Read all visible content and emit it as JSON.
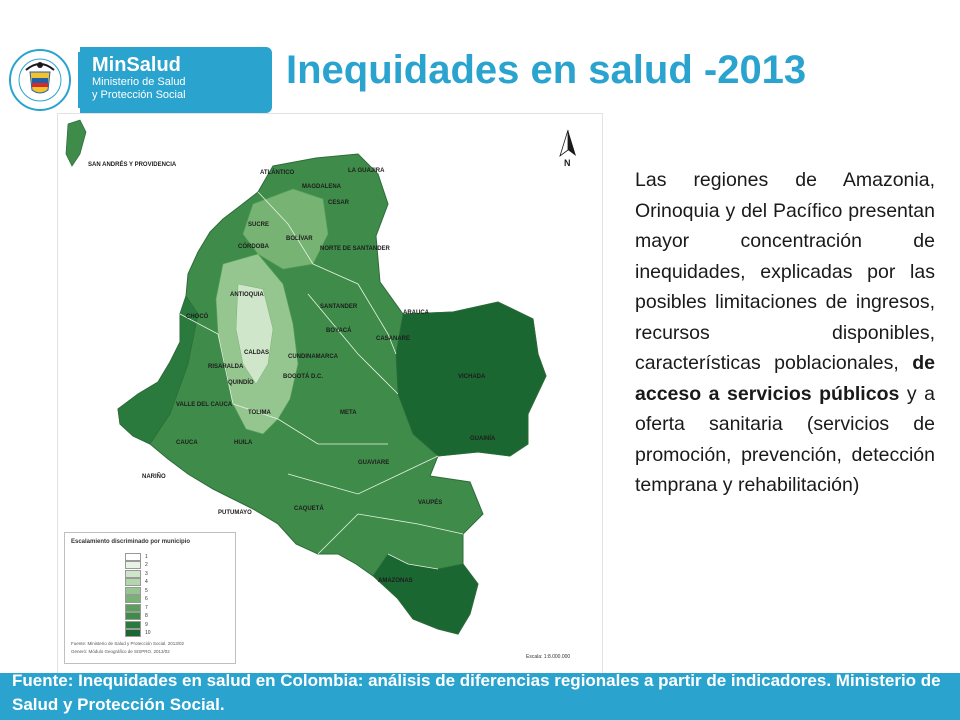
{
  "header": {
    "brand_name": "MinSalud",
    "brand_line1": "Ministerio de Salud",
    "brand_line2": "y Protección Social",
    "seal_text": "REPÚBLICA DE COLOMBIA",
    "title": "Inequidades en salud -2013"
  },
  "map": {
    "compass_label": "N",
    "labels": [
      "SAN ANDRÉS Y PROVIDENCIA",
      "ATLÁNTICO",
      "MAGDALENA",
      "LA GUAJIRA",
      "CESAR",
      "SUCRE",
      "BOLÍVAR",
      "NORTE DE SANTANDER",
      "CÓRDOBA",
      "ANTIOQUIA",
      "SANTANDER",
      "ARAUCA",
      "CHOCÓ",
      "BOYACÁ",
      "CASANARE",
      "CALDAS",
      "CUNDINAMARCA",
      "RISARALDA",
      "QUINDÍO",
      "BOGOTÁ D.C.",
      "VICHADA",
      "VALLE DEL CAUCA",
      "TOLIMA",
      "META",
      "CAUCA",
      "HUILA",
      "GUAINÍA",
      "NARIÑO",
      "GUAVIARE",
      "CAQUETÁ",
      "PUTUMAYO",
      "VAUPÉS",
      "AMAZONAS"
    ],
    "legend": {
      "title": "Escalamiento discriminado por municipio",
      "levels": [
        "1",
        "2",
        "3",
        "4",
        "5",
        "6",
        "7",
        "8",
        "9",
        "10"
      ],
      "colors": [
        "#ffffff",
        "#e8f3e5",
        "#cfe6ca",
        "#b3d7ad",
        "#95c68f",
        "#77b373",
        "#5aa05c",
        "#3f8c4a",
        "#2a7a3d",
        "#1b6732"
      ],
      "source_1": "Fuente: Ministerio de Salud y Protección Social. 2013/02",
      "source_2": "Generó: Módulo Geográfico de SISPRO. 2013/02",
      "scale": "Escala: 1:8.000.000"
    }
  },
  "body": {
    "part1": "Las regiones de Amazonia, Orinoquia y del Pacífico presentan mayor concentración de inequidades, explicadas por las posibles limitaciones de ingresos, recursos disponibles, características poblacionales, ",
    "bold": "de acceso a servicios públicos",
    "part2": " y a oferta sanitaria (servicios de promoción, prevención, detección temprana y rehabilitación)"
  },
  "footer": {
    "text": "Fuente: Inequidades en salud en Colombia: análisis de diferencias regionales a partir de indicadores. Ministerio de Salud y Protección Social."
  }
}
